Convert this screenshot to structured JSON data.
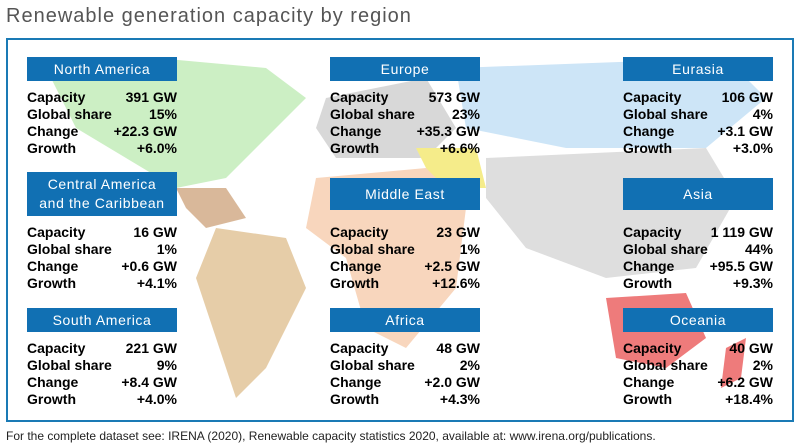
{
  "title": "Renewable generation capacity by region",
  "regions": [
    {
      "name": [
        "North America"
      ],
      "rows": [
        [
          "Capacity",
          "391 GW"
        ],
        [
          "Global share",
          "15%"
        ],
        [
          "Change",
          "+22.3 GW"
        ],
        [
          "Growth",
          "+6.0%"
        ]
      ]
    },
    {
      "name": [
        "Europe"
      ],
      "rows": [
        [
          "Capacity",
          "573 GW"
        ],
        [
          "Global share",
          "23%"
        ],
        [
          "Change",
          "+35.3 GW"
        ],
        [
          "Growth",
          "+6.6%"
        ]
      ]
    },
    {
      "name": [
        "Eurasia"
      ],
      "rows": [
        [
          "Capacity",
          "106 GW"
        ],
        [
          "Global share",
          "4%"
        ],
        [
          "Change",
          "+3.1 GW"
        ],
        [
          "Growth",
          "+3.0%"
        ]
      ]
    },
    {
      "name": [
        "Central America",
        "and the Caribbean"
      ],
      "rows": [
        [
          "Capacity",
          "16 GW"
        ],
        [
          "Global share",
          "1%"
        ],
        [
          "Change",
          "+0.6 GW"
        ],
        [
          "Growth",
          "+4.1%"
        ]
      ]
    },
    {
      "name": [
        "Middle East"
      ],
      "rows": [
        [
          "Capacity",
          "23 GW"
        ],
        [
          "Global share",
          "1%"
        ],
        [
          "Change",
          "+2.5 GW"
        ],
        [
          "Growth",
          "+12.6%"
        ]
      ]
    },
    {
      "name": [
        "Asia"
      ],
      "rows": [
        [
          "Capacity",
          "1 119 GW"
        ],
        [
          "Global share",
          "44%"
        ],
        [
          "Change",
          "+95.5 GW"
        ],
        [
          "Growth",
          "+9.3%"
        ]
      ]
    },
    {
      "name": [
        "South America"
      ],
      "rows": [
        [
          "Capacity",
          "221 GW"
        ],
        [
          "Global share",
          "9%"
        ],
        [
          "Change",
          "+8.4 GW"
        ],
        [
          "Growth",
          "+4.0%"
        ]
      ]
    },
    {
      "name": [
        "Africa"
      ],
      "rows": [
        [
          "Capacity",
          "48 GW"
        ],
        [
          "Global share",
          "2%"
        ],
        [
          "Change",
          "+2.0 GW"
        ],
        [
          "Growth",
          "+4.3%"
        ]
      ]
    },
    {
      "name": [
        "Oceania"
      ],
      "rows": [
        [
          "Capacity",
          "40 GW"
        ],
        [
          "Global share",
          "2%"
        ],
        [
          "Change",
          "+6.2 GW"
        ],
        [
          "Growth",
          "+18.4%"
        ]
      ]
    }
  ],
  "footer": "For the complete dataset see: IRENA (2020), Renewable capacity statistics 2020, available at: www.irena.org/publications."
}
